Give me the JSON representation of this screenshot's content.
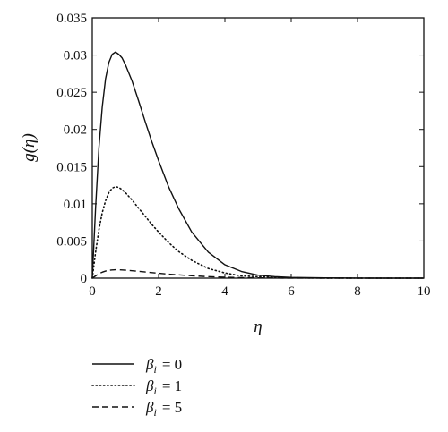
{
  "chart_data": {
    "type": "line",
    "xlabel": "η",
    "ylabel": "g(η)",
    "xlim": [
      0,
      10
    ],
    "ylim": [
      0,
      0.035
    ],
    "xticks": [
      "0",
      "2",
      "4",
      "6",
      "8",
      "10"
    ],
    "yticks": [
      "0",
      "0.005",
      "0.01",
      "0.015",
      "0.02",
      "0.025",
      "0.03",
      "0.035"
    ],
    "grid": false,
    "legend_position": "bottom-left-below-plot",
    "series": [
      {
        "name": "βi = 0",
        "label_symbol": "β",
        "label_subscript": "i",
        "label_value": "= 0",
        "style": "solid",
        "color": "#111111",
        "x": [
          0,
          0.1,
          0.2,
          0.3,
          0.4,
          0.5,
          0.6,
          0.7,
          0.8,
          0.9,
          1.0,
          1.2,
          1.4,
          1.6,
          1.8,
          2.0,
          2.3,
          2.6,
          3.0,
          3.5,
          4.0,
          4.5,
          5.0,
          5.5,
          6.0,
          7.0,
          8.0,
          9.0,
          10.0
        ],
        "y": [
          0,
          0.0095,
          0.0175,
          0.023,
          0.0268,
          0.029,
          0.0301,
          0.0304,
          0.0301,
          0.0296,
          0.0287,
          0.0265,
          0.0238,
          0.021,
          0.0183,
          0.0158,
          0.0123,
          0.0094,
          0.0062,
          0.0035,
          0.0018,
          0.0009,
          0.0004,
          0.0002,
          0.0001,
          3e-05,
          1e-05,
          0,
          0
        ]
      },
      {
        "name": "βi = 1",
        "label_symbol": "β",
        "label_subscript": "i",
        "label_value": "= 1",
        "style": "dotted",
        "color": "#111111",
        "x": [
          0,
          0.1,
          0.2,
          0.3,
          0.4,
          0.5,
          0.6,
          0.7,
          0.8,
          0.9,
          1.0,
          1.2,
          1.4,
          1.6,
          1.8,
          2.0,
          2.3,
          2.6,
          3.0,
          3.5,
          4.0,
          4.5,
          5.0,
          5.5,
          6.0,
          7.0,
          8.0,
          9.0,
          10.0
        ],
        "y": [
          0,
          0.0035,
          0.0065,
          0.0088,
          0.0104,
          0.0115,
          0.0121,
          0.0123,
          0.0122,
          0.0119,
          0.0115,
          0.0105,
          0.0094,
          0.0083,
          0.0072,
          0.0062,
          0.0048,
          0.0036,
          0.0024,
          0.0013,
          0.0007,
          0.0003,
          0.0002,
          0.0001,
          4e-05,
          1e-05,
          0,
          0,
          0
        ]
      },
      {
        "name": "βi = 5",
        "label_symbol": "β",
        "label_subscript": "i",
        "label_value": "= 5",
        "style": "dashed",
        "color": "#111111",
        "x": [
          0,
          0.1,
          0.2,
          0.3,
          0.4,
          0.5,
          0.6,
          0.7,
          0.8,
          0.9,
          1.0,
          1.2,
          1.4,
          1.6,
          1.8,
          2.0,
          2.3,
          2.6,
          3.0,
          3.5,
          4.0,
          4.5,
          5.0,
          5.5,
          6.0,
          7.0,
          8.0,
          9.0,
          10.0
        ],
        "y": [
          0,
          0.0003,
          0.0006,
          0.0008,
          0.00095,
          0.00105,
          0.00111,
          0.00113,
          0.00113,
          0.00111,
          0.00108,
          0.001,
          0.00092,
          0.00083,
          0.00074,
          0.00066,
          0.00054,
          0.00044,
          0.00032,
          0.0002,
          0.00012,
          7e-05,
          4e-05,
          2e-05,
          1e-05,
          0,
          0,
          0,
          0
        ]
      }
    ]
  }
}
